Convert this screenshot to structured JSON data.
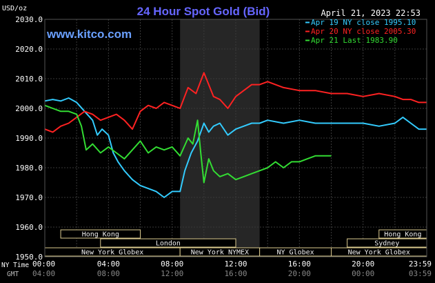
{
  "header": {
    "title": "24 Hour Spot Gold (Bid)",
    "datetime": "April 21, 2023 22:53",
    "brand": "www.kitco.com",
    "y_unit": "USD/oz"
  },
  "colors": {
    "background": "#000000",
    "plot_bg": "#000000",
    "grid": "#3a3a3a",
    "title": "#6666ff",
    "brand": "#6aa0ff",
    "text": "#ffffff",
    "axis_text": "#bbbbbb",
    "sessions": "#dccb8f",
    "session_text": "#f0f0f0",
    "highlight": "#262626"
  },
  "axis_labels": {
    "ny_time": "NY Time",
    "gmt": "GMT"
  },
  "chart_data": {
    "type": "line",
    "title": "24 Hour Spot Gold (Bid)",
    "ylabel": "USD/oz",
    "ylim": [
      1950,
      2030
    ],
    "yticks": [
      1950,
      1960,
      1970,
      1980,
      1990,
      2000,
      2010,
      2020,
      2030
    ],
    "ytick_labels": [
      "1950.0",
      "1960.0",
      "1970.0",
      "1980.0",
      "1990.0",
      "2000.0",
      "2010.0",
      "2020.0",
      "2030.0"
    ],
    "xlim": [
      0,
      24
    ],
    "xticks": [
      0,
      4,
      8,
      12,
      16,
      20,
      24
    ],
    "xtick_labels_ny": [
      "00:00",
      "04:00",
      "08:00",
      "12:00",
      "16:00",
      "20:00",
      "23:59"
    ],
    "xtick_labels_gmt": [
      "04:00",
      "08:00",
      "12:00",
      "16:00",
      "20:00",
      "00:00",
      "03:59"
    ],
    "grid": true,
    "legend_position": "top-right",
    "highlight_band": [
      8.5,
      13.5
    ],
    "sessions": [
      {
        "name": "Hong Kong",
        "start": 1,
        "end": 6
      },
      {
        "name": "London",
        "start": 3.5,
        "end": 12
      },
      {
        "name": "New York Globex",
        "start": 0,
        "end": 8.5
      },
      {
        "name": "New York NYMEX",
        "start": 8.5,
        "end": 13.5
      },
      {
        "name": "NY Globex",
        "start": 13.5,
        "end": 18
      },
      {
        "name": "Hong Kong",
        "start": 21,
        "end": 24
      },
      {
        "name": "Sydney",
        "start": 19,
        "end": 24
      },
      {
        "name": "New York Globex",
        "start": 18,
        "end": 24
      }
    ],
    "series": [
      {
        "name": "Apr 19 NY close 1995.10",
        "color": "#33ccff",
        "x": [
          0,
          0.5,
          1,
          1.5,
          2,
          2.5,
          3,
          3.3,
          3.6,
          4,
          4.3,
          4.6,
          5,
          5.5,
          6,
          6.5,
          7,
          7.5,
          8,
          8.5,
          8.8,
          9.2,
          9.6,
          10,
          10.3,
          10.6,
          11,
          11.5,
          12,
          12.5,
          13,
          13.5,
          14,
          15,
          16,
          17,
          18,
          19,
          20,
          21,
          22,
          22.5,
          23,
          23.5,
          24
        ],
        "y": [
          2002.5,
          2003,
          2002.5,
          2003.5,
          2002,
          1999,
          1996,
          1991,
          1993,
          1991,
          1985,
          1982,
          1979,
          1976,
          1974,
          1973,
          1972,
          1970,
          1972,
          1972,
          1979,
          1985,
          1989,
          1995,
          1992,
          1994,
          1995,
          1991,
          1993,
          1994,
          1995,
          1995,
          1996,
          1995,
          1996,
          1995,
          1995,
          1995,
          1995,
          1994,
          1995,
          1997,
          1995,
          1993,
          1993
        ]
      },
      {
        "name": "Apr 20 NY close 2005.30",
        "color": "#ff2222",
        "x": [
          0,
          0.5,
          1,
          1.5,
          2,
          2.5,
          3,
          3.5,
          4,
          4.5,
          5,
          5.5,
          6,
          6.5,
          7,
          7.5,
          8,
          8.5,
          9,
          9.5,
          10,
          10.3,
          10.6,
          11,
          11.5,
          12,
          12.5,
          13,
          13.5,
          14,
          15,
          16,
          17,
          18,
          19,
          20,
          21,
          22,
          22.5,
          23,
          23.5,
          24
        ],
        "y": [
          1993,
          1992,
          1994,
          1995,
          1997,
          1999,
          1998,
          1996,
          1997,
          1998,
          1996,
          1993,
          1999,
          2001,
          2000,
          2002,
          2001,
          2000,
          2007,
          2005,
          2012,
          2008,
          2004,
          2003,
          2000,
          2004,
          2006,
          2008,
          2008,
          2009,
          2007,
          2006,
          2006,
          2005,
          2005,
          2004,
          2005,
          2004,
          2003,
          2003,
          2002,
          2002
        ]
      },
      {
        "name": "Apr 21 Last 1983.90",
        "color": "#33dd33",
        "x": [
          0,
          0.5,
          1,
          1.5,
          2,
          2.3,
          2.6,
          3,
          3.5,
          4,
          4.5,
          5,
          5.5,
          6,
          6.5,
          7,
          7.5,
          8,
          8.5,
          9,
          9.3,
          9.6,
          9.8,
          10,
          10.3,
          10.6,
          11,
          11.5,
          12,
          12.5,
          13,
          13.5,
          14,
          14.5,
          15,
          15.5,
          16,
          16.5,
          17,
          17.5,
          18
        ],
        "y": [
          2001,
          2000,
          1999,
          1999,
          1998,
          1994,
          1986,
          1988,
          1985,
          1987,
          1985,
          1983,
          1986,
          1989,
          1985,
          1987,
          1986,
          1987,
          1984,
          1990,
          1988,
          1996,
          1985,
          1975,
          1983,
          1979,
          1977,
          1978,
          1976,
          1977,
          1978,
          1979,
          1980,
          1982,
          1980,
          1982,
          1982,
          1983,
          1984,
          1984,
          1984
        ]
      }
    ]
  }
}
